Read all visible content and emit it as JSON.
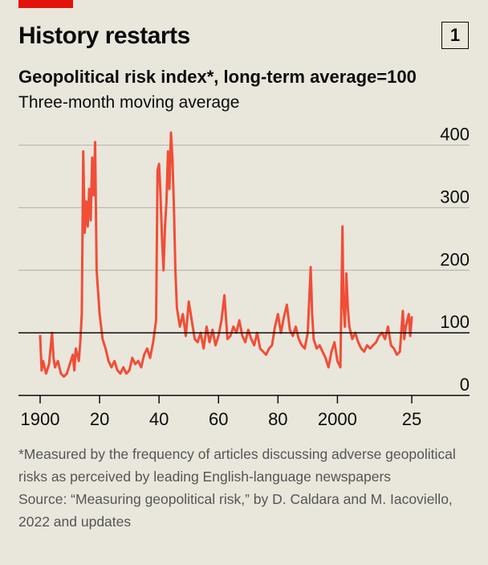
{
  "header": {
    "headline": "History restarts",
    "chart_number": "1"
  },
  "chart_data": {
    "type": "line",
    "title": "Geopolitical risk index*, long-term average=100",
    "subtitle": "Three-month moving average",
    "xlabel": "",
    "ylabel": "",
    "xlim": [
      1898,
      2027
    ],
    "ylim": [
      0,
      420
    ],
    "x_ticks": [
      {
        "value": 1900,
        "label": "1900"
      },
      {
        "value": 1920,
        "label": "20"
      },
      {
        "value": 1940,
        "label": "40"
      },
      {
        "value": 1960,
        "label": "60"
      },
      {
        "value": 1980,
        "label": "80"
      },
      {
        "value": 2000,
        "label": "2000"
      },
      {
        "value": 2025,
        "label": "25"
      }
    ],
    "y_ticks": [
      0,
      100,
      200,
      300,
      400
    ],
    "reference_line": 100,
    "grid": true,
    "series": [
      {
        "color": "#f04e37",
        "points": [
          [
            1900,
            95
          ],
          [
            1900.5,
            40
          ],
          [
            1901,
            55
          ],
          [
            1902,
            35
          ],
          [
            1903,
            50
          ],
          [
            1904,
            100
          ],
          [
            1904.5,
            60
          ],
          [
            1905,
            45
          ],
          [
            1906,
            55
          ],
          [
            1907,
            35
          ],
          [
            1908,
            30
          ],
          [
            1909,
            35
          ],
          [
            1910,
            50
          ],
          [
            1911,
            65
          ],
          [
            1911.5,
            40
          ],
          [
            1912,
            75
          ],
          [
            1913,
            55
          ],
          [
            1913.5,
            85
          ],
          [
            1914,
            130
          ],
          [
            1914.5,
            390
          ],
          [
            1915,
            260
          ],
          [
            1915.5,
            310
          ],
          [
            1916,
            270
          ],
          [
            1916.5,
            330
          ],
          [
            1917,
            280
          ],
          [
            1917.5,
            380
          ],
          [
            1918,
            320
          ],
          [
            1918.5,
            405
          ],
          [
            1919,
            200
          ],
          [
            1920,
            130
          ],
          [
            1921,
            90
          ],
          [
            1922,
            75
          ],
          [
            1923,
            55
          ],
          [
            1924,
            45
          ],
          [
            1925,
            55
          ],
          [
            1926,
            40
          ],
          [
            1927,
            35
          ],
          [
            1928,
            45
          ],
          [
            1929,
            35
          ],
          [
            1930,
            40
          ],
          [
            1931,
            60
          ],
          [
            1932,
            50
          ],
          [
            1933,
            55
          ],
          [
            1934,
            45
          ],
          [
            1935,
            65
          ],
          [
            1936,
            75
          ],
          [
            1937,
            60
          ],
          [
            1938,
            85
          ],
          [
            1939,
            120
          ],
          [
            1939.5,
            360
          ],
          [
            1940,
            370
          ],
          [
            1940.5,
            320
          ],
          [
            1941,
            250
          ],
          [
            1941.5,
            200
          ],
          [
            1942,
            270
          ],
          [
            1942.5,
            310
          ],
          [
            1943,
            390
          ],
          [
            1943.5,
            330
          ],
          [
            1944,
            420
          ],
          [
            1944.5,
            380
          ],
          [
            1945,
            300
          ],
          [
            1945.5,
            200
          ],
          [
            1946,
            140
          ],
          [
            1947,
            110
          ],
          [
            1948,
            130
          ],
          [
            1949,
            95
          ],
          [
            1950,
            150
          ],
          [
            1951,
            120
          ],
          [
            1952,
            90
          ],
          [
            1953,
            85
          ],
          [
            1954,
            100
          ],
          [
            1955,
            75
          ],
          [
            1956,
            110
          ],
          [
            1957,
            85
          ],
          [
            1958,
            105
          ],
          [
            1959,
            80
          ],
          [
            1960,
            95
          ],
          [
            1961,
            120
          ],
          [
            1962,
            160
          ],
          [
            1963,
            90
          ],
          [
            1964,
            95
          ],
          [
            1965,
            110
          ],
          [
            1966,
            100
          ],
          [
            1967,
            120
          ],
          [
            1968,
            95
          ],
          [
            1969,
            85
          ],
          [
            1970,
            105
          ],
          [
            1971,
            90
          ],
          [
            1972,
            80
          ],
          [
            1973,
            100
          ],
          [
            1974,
            75
          ],
          [
            1975,
            70
          ],
          [
            1976,
            65
          ],
          [
            1977,
            75
          ],
          [
            1978,
            80
          ],
          [
            1979,
            110
          ],
          [
            1980,
            130
          ],
          [
            1981,
            100
          ],
          [
            1982,
            125
          ],
          [
            1983,
            145
          ],
          [
            1984,
            105
          ],
          [
            1985,
            95
          ],
          [
            1986,
            110
          ],
          [
            1987,
            90
          ],
          [
            1988,
            80
          ],
          [
            1989,
            75
          ],
          [
            1990,
            100
          ],
          [
            1991,
            205
          ],
          [
            1991.5,
            130
          ],
          [
            1992,
            90
          ],
          [
            1993,
            75
          ],
          [
            1994,
            80
          ],
          [
            1995,
            70
          ],
          [
            1996,
            60
          ],
          [
            1997,
            45
          ],
          [
            1998,
            70
          ],
          [
            1999,
            85
          ],
          [
            2000,
            55
          ],
          [
            2001,
            45
          ],
          [
            2001.7,
            270
          ],
          [
            2002,
            150
          ],
          [
            2002.5,
            110
          ],
          [
            2003,
            195
          ],
          [
            2003.5,
            140
          ],
          [
            2004,
            110
          ],
          [
            2005,
            90
          ],
          [
            2006,
            100
          ],
          [
            2007,
            85
          ],
          [
            2008,
            75
          ],
          [
            2009,
            70
          ],
          [
            2010,
            80
          ],
          [
            2011,
            75
          ],
          [
            2012,
            80
          ],
          [
            2013,
            85
          ],
          [
            2014,
            95
          ],
          [
            2015,
            100
          ],
          [
            2016,
            90
          ],
          [
            2017,
            110
          ],
          [
            2018,
            80
          ],
          [
            2019,
            75
          ],
          [
            2020,
            65
          ],
          [
            2021,
            70
          ],
          [
            2022,
            135
          ],
          [
            2022.5,
            90
          ],
          [
            2023,
            110
          ],
          [
            2024,
            130
          ],
          [
            2024.5,
            95
          ],
          [
            2025,
            125
          ]
        ]
      }
    ]
  },
  "footnote": {
    "note": "*Measured by the frequency of articles discussing adverse geopolitical risks as perceived by leading English-language newspapers",
    "source": "Source: “Measuring geopolitical risk,” by D. Caldara and M. Iacoviello, 2022 and updates"
  }
}
